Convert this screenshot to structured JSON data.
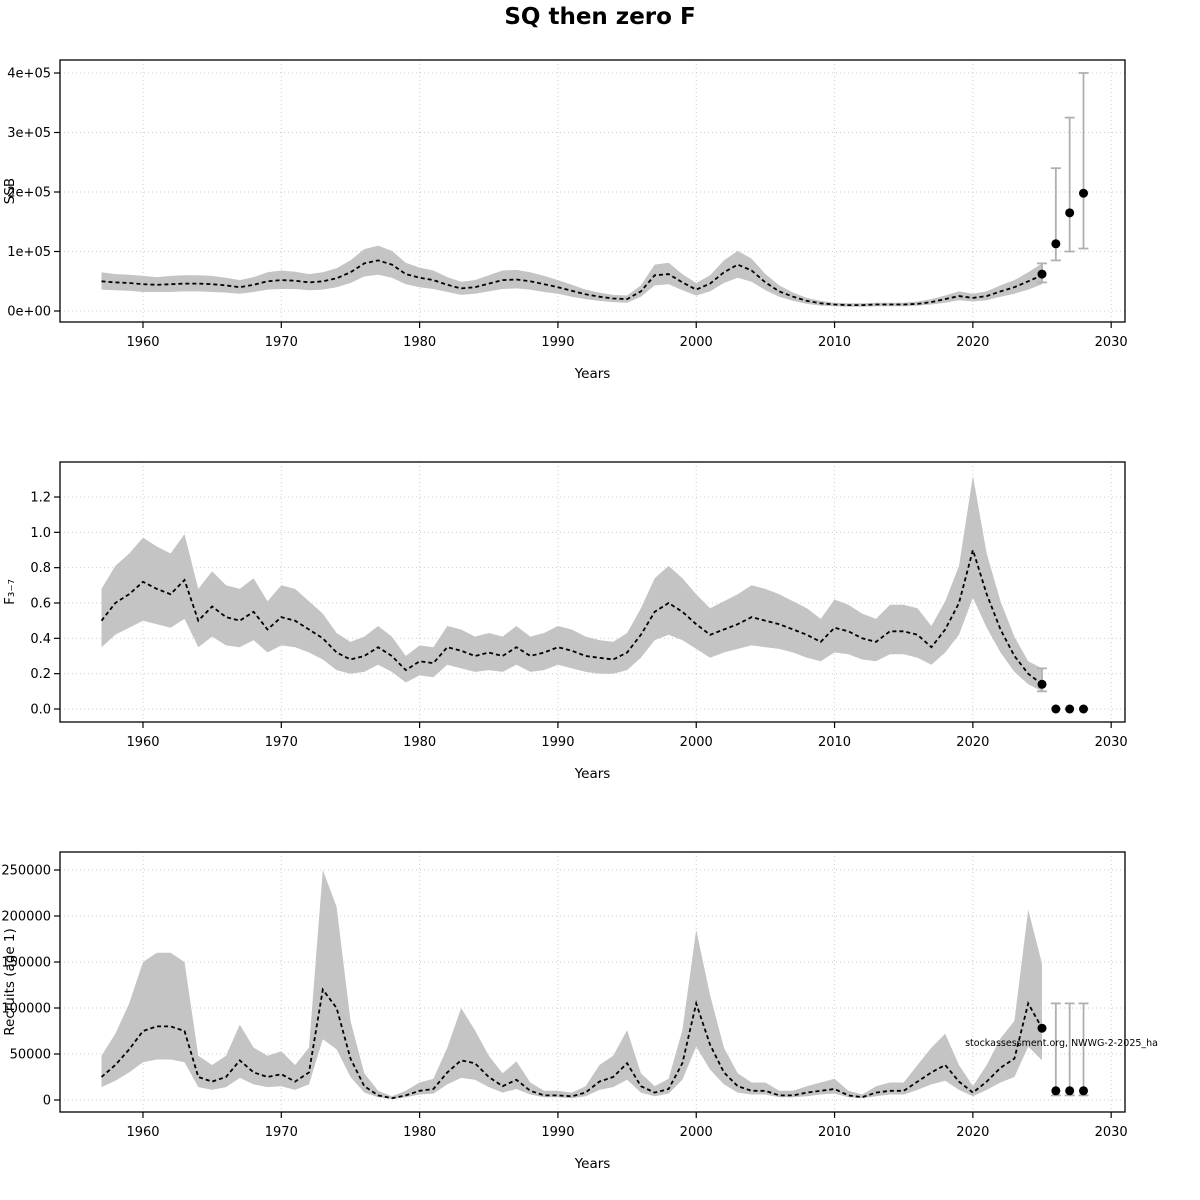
{
  "title": "SQ then zero F",
  "watermark": "stockassessment.org, NWWG-2-2025_ha",
  "chart_data": [
    {
      "type": "line",
      "name": "ssb",
      "xlabel": "Years",
      "ylabel": "SSB",
      "legend": "median with confidence band and forecast points",
      "grid": true,
      "xlim": [
        1954,
        2031
      ],
      "ylim": [
        0,
        400000
      ],
      "xticks": [
        1960,
        1970,
        1980,
        1990,
        2000,
        2010,
        2020,
        2030
      ],
      "yticks": [
        0,
        100000,
        200000,
        300000,
        400000
      ],
      "ytick_labels": [
        "0e+00",
        "1e+05",
        "2e+05",
        "3e+05",
        "4e+05"
      ],
      "years": [
        1957,
        1958,
        1959,
        1960,
        1961,
        1962,
        1963,
        1964,
        1965,
        1966,
        1967,
        1968,
        1969,
        1970,
        1971,
        1972,
        1973,
        1974,
        1975,
        1976,
        1977,
        1978,
        1979,
        1980,
        1981,
        1982,
        1983,
        1984,
        1985,
        1986,
        1987,
        1988,
        1989,
        1990,
        1991,
        1992,
        1993,
        1994,
        1995,
        1996,
        1997,
        1998,
        1999,
        2000,
        2001,
        2002,
        2003,
        2004,
        2005,
        2006,
        2007,
        2008,
        2009,
        2010,
        2011,
        2012,
        2013,
        2014,
        2015,
        2016,
        2017,
        2018,
        2019,
        2020,
        2021,
        2022,
        2023,
        2024,
        2025
      ],
      "median": [
        50000,
        48000,
        47000,
        45000,
        44000,
        45000,
        46000,
        46000,
        45000,
        43000,
        40000,
        44000,
        50000,
        52000,
        51000,
        48000,
        50000,
        55000,
        65000,
        80000,
        85000,
        78000,
        62000,
        56000,
        52000,
        44000,
        38000,
        40000,
        46000,
        52000,
        53000,
        50000,
        45000,
        40000,
        34000,
        28000,
        24000,
        21000,
        20000,
        33000,
        60000,
        62000,
        48000,
        36000,
        46000,
        65000,
        78000,
        68000,
        48000,
        33000,
        24000,
        17000,
        13000,
        11000,
        10000,
        10000,
        11000,
        11000,
        11000,
        12000,
        15000,
        20000,
        25000,
        22000,
        25000,
        33000,
        40000,
        50000,
        60000
      ],
      "upper": [
        65000,
        62000,
        61000,
        59000,
        57000,
        59000,
        60000,
        60000,
        59000,
        56000,
        52000,
        57000,
        65000,
        68000,
        66000,
        62000,
        65000,
        72000,
        85000,
        104000,
        110000,
        101000,
        81000,
        73000,
        68000,
        57000,
        49000,
        52000,
        60000,
        68000,
        69000,
        65000,
        59000,
        52000,
        44000,
        36000,
        31000,
        27000,
        26000,
        43000,
        78000,
        81000,
        62000,
        47000,
        60000,
        85000,
        101000,
        88000,
        62000,
        43000,
        31000,
        22000,
        17000,
        14000,
        13000,
        13000,
        14000,
        14000,
        14000,
        16000,
        20000,
        26000,
        33000,
        29000,
        33000,
        43000,
        52000,
        65000,
        80000
      ],
      "lower": [
        36000,
        35000,
        34000,
        32000,
        32000,
        32000,
        33000,
        33000,
        32000,
        31000,
        29000,
        32000,
        36000,
        37000,
        37000,
        35000,
        36000,
        40000,
        47000,
        58000,
        61000,
        56000,
        45000,
        40000,
        37000,
        32000,
        27000,
        29000,
        33000,
        37000,
        38000,
        36000,
        32000,
        29000,
        24000,
        20000,
        17000,
        15000,
        14000,
        24000,
        43000,
        45000,
        35000,
        26000,
        33000,
        47000,
        56000,
        49000,
        35000,
        24000,
        17000,
        12000,
        9000,
        8000,
        7000,
        7000,
        8000,
        8000,
        8000,
        9000,
        11000,
        14000,
        18000,
        16000,
        18000,
        24000,
        29000,
        36000,
        45000
      ],
      "forecast": {
        "years": [
          2025,
          2026,
          2027,
          2028
        ],
        "points": [
          62000,
          113000,
          165000,
          198000
        ],
        "lower": [
          48000,
          85000,
          100000,
          105000
        ],
        "upper": [
          80000,
          240000,
          325000,
          400000
        ]
      }
    },
    {
      "type": "line",
      "name": "f",
      "xlabel": "Years",
      "ylabel": "F₃₋₇",
      "legend": "median with confidence band and forecast points",
      "grid": true,
      "xlim": [
        1954,
        2031
      ],
      "ylim": [
        0,
        1.2
      ],
      "xticks": [
        1960,
        1970,
        1980,
        1990,
        2000,
        2010,
        2020,
        2030
      ],
      "yticks": [
        0,
        0.2,
        0.4,
        0.6,
        0.8,
        1.0,
        1.2
      ],
      "ytick_labels": [
        "0.0",
        "0.2",
        "0.4",
        "0.6",
        "0.8",
        "1.0",
        "1.2"
      ],
      "years": [
        1957,
        1958,
        1959,
        1960,
        1961,
        1962,
        1963,
        1964,
        1965,
        1966,
        1967,
        1968,
        1969,
        1970,
        1971,
        1972,
        1973,
        1974,
        1975,
        1976,
        1977,
        1978,
        1979,
        1980,
        1981,
        1982,
        1983,
        1984,
        1985,
        1986,
        1987,
        1988,
        1989,
        1990,
        1991,
        1992,
        1993,
        1994,
        1995,
        1996,
        1997,
        1998,
        1999,
        2000,
        2001,
        2002,
        2003,
        2004,
        2005,
        2006,
        2007,
        2008,
        2009,
        2010,
        2011,
        2012,
        2013,
        2014,
        2015,
        2016,
        2017,
        2018,
        2019,
        2020,
        2021,
        2022,
        2023,
        2024,
        2025
      ],
      "median": [
        0.5,
        0.6,
        0.65,
        0.72,
        0.68,
        0.65,
        0.73,
        0.5,
        0.58,
        0.52,
        0.5,
        0.55,
        0.45,
        0.52,
        0.5,
        0.45,
        0.4,
        0.32,
        0.28,
        0.3,
        0.35,
        0.3,
        0.22,
        0.27,
        0.26,
        0.35,
        0.33,
        0.3,
        0.32,
        0.3,
        0.35,
        0.3,
        0.32,
        0.35,
        0.33,
        0.3,
        0.29,
        0.28,
        0.32,
        0.42,
        0.55,
        0.6,
        0.55,
        0.48,
        0.42,
        0.45,
        0.48,
        0.52,
        0.5,
        0.48,
        0.45,
        0.42,
        0.38,
        0.46,
        0.44,
        0.4,
        0.38,
        0.44,
        0.44,
        0.42,
        0.35,
        0.45,
        0.6,
        0.9,
        0.65,
        0.45,
        0.3,
        0.2,
        0.14
      ],
      "upper": [
        0.68,
        0.81,
        0.88,
        0.97,
        0.92,
        0.88,
        0.99,
        0.68,
        0.78,
        0.7,
        0.68,
        0.74,
        0.61,
        0.7,
        0.68,
        0.61,
        0.54,
        0.43,
        0.38,
        0.41,
        0.47,
        0.41,
        0.3,
        0.36,
        0.35,
        0.47,
        0.45,
        0.41,
        0.43,
        0.41,
        0.47,
        0.41,
        0.43,
        0.47,
        0.45,
        0.41,
        0.39,
        0.38,
        0.43,
        0.57,
        0.74,
        0.81,
        0.74,
        0.65,
        0.57,
        0.61,
        0.65,
        0.7,
        0.68,
        0.65,
        0.61,
        0.57,
        0.51,
        0.62,
        0.59,
        0.54,
        0.51,
        0.59,
        0.59,
        0.57,
        0.47,
        0.61,
        0.81,
        1.32,
        0.88,
        0.61,
        0.41,
        0.27,
        0.23
      ],
      "lower": [
        0.35,
        0.42,
        0.46,
        0.5,
        0.48,
        0.46,
        0.51,
        0.35,
        0.41,
        0.36,
        0.35,
        0.39,
        0.32,
        0.36,
        0.35,
        0.32,
        0.28,
        0.22,
        0.2,
        0.21,
        0.25,
        0.21,
        0.15,
        0.19,
        0.18,
        0.25,
        0.23,
        0.21,
        0.22,
        0.21,
        0.25,
        0.21,
        0.22,
        0.25,
        0.23,
        0.21,
        0.2,
        0.2,
        0.22,
        0.29,
        0.39,
        0.42,
        0.39,
        0.34,
        0.29,
        0.32,
        0.34,
        0.36,
        0.35,
        0.34,
        0.32,
        0.29,
        0.27,
        0.32,
        0.31,
        0.28,
        0.27,
        0.31,
        0.31,
        0.29,
        0.25,
        0.32,
        0.42,
        0.63,
        0.46,
        0.32,
        0.21,
        0.14,
        0.1
      ],
      "forecast": {
        "years": [
          2025,
          2026,
          2027,
          2028
        ],
        "points": [
          0.14,
          0,
          0,
          0
        ],
        "lower": [
          0.1,
          0,
          0,
          0
        ],
        "upper": [
          0.23,
          0,
          0,
          0
        ]
      }
    },
    {
      "type": "line",
      "name": "recruits",
      "xlabel": "Years",
      "ylabel": "Recruits (age 1)",
      "legend": "median with confidence band and forecast points",
      "grid": true,
      "xlim": [
        1954,
        2031
      ],
      "ylim": [
        0,
        250000
      ],
      "xticks": [
        1960,
        1970,
        1980,
        1990,
        2000,
        2010,
        2020,
        2030
      ],
      "yticks": [
        0,
        50000,
        100000,
        150000,
        200000,
        250000
      ],
      "ytick_labels": [
        "0",
        "50000",
        "100000",
        "150000",
        "200000",
        "250000"
      ],
      "years": [
        1957,
        1958,
        1959,
        1960,
        1961,
        1962,
        1963,
        1964,
        1965,
        1966,
        1967,
        1968,
        1969,
        1970,
        1971,
        1972,
        1973,
        1974,
        1975,
        1976,
        1977,
        1978,
        1979,
        1980,
        1981,
        1982,
        1983,
        1984,
        1985,
        1986,
        1987,
        1988,
        1989,
        1990,
        1991,
        1992,
        1993,
        1994,
        1995,
        1996,
        1997,
        1998,
        1999,
        2000,
        2001,
        2002,
        2003,
        2004,
        2005,
        2006,
        2007,
        2008,
        2009,
        2010,
        2011,
        2012,
        2013,
        2014,
        2015,
        2016,
        2017,
        2018,
        2019,
        2020,
        2021,
        2022,
        2023,
        2024,
        2025
      ],
      "median": [
        25000,
        38000,
        55000,
        75000,
        80000,
        80000,
        75000,
        25000,
        20000,
        25000,
        43000,
        30000,
        25000,
        28000,
        20000,
        30000,
        120000,
        100000,
        45000,
        15000,
        5000,
        2000,
        5000,
        10000,
        12000,
        30000,
        43000,
        40000,
        25000,
        15000,
        22000,
        10000,
        5000,
        5000,
        4000,
        8000,
        20000,
        25000,
        40000,
        15000,
        8000,
        12000,
        40000,
        105000,
        60000,
        30000,
        15000,
        10000,
        10000,
        5000,
        5000,
        8000,
        10000,
        12000,
        5000,
        3000,
        8000,
        10000,
        10000,
        20000,
        30000,
        38000,
        20000,
        8000,
        20000,
        35000,
        45000,
        105000,
        78000
      ],
      "upper": [
        48000,
        72000,
        105000,
        150000,
        160000,
        160000,
        150000,
        48000,
        38000,
        48000,
        82000,
        57000,
        48000,
        53000,
        38000,
        57000,
        250000,
        210000,
        86000,
        29000,
        10000,
        4000,
        10000,
        19000,
        23000,
        57000,
        100000,
        76000,
        48000,
        29000,
        42000,
        19000,
        10000,
        10000,
        8000,
        15000,
        38000,
        48000,
        76000,
        29000,
        15000,
        23000,
        76000,
        185000,
        114000,
        57000,
        29000,
        19000,
        19000,
        10000,
        10000,
        15000,
        19000,
        23000,
        10000,
        6000,
        15000,
        19000,
        19000,
        38000,
        57000,
        72000,
        38000,
        15000,
        38000,
        67000,
        86000,
        207000,
        148000
      ],
      "lower": [
        14000,
        21000,
        30000,
        41000,
        44000,
        44000,
        41000,
        14000,
        11000,
        14000,
        24000,
        17000,
        14000,
        15000,
        11000,
        17000,
        66000,
        55000,
        25000,
        8000,
        3000,
        1000,
        3000,
        6000,
        7000,
        17000,
        24000,
        22000,
        14000,
        8000,
        12000,
        6000,
        3000,
        3000,
        2000,
        4000,
        11000,
        14000,
        22000,
        8000,
        4000,
        7000,
        22000,
        58000,
        33000,
        17000,
        8000,
        6000,
        6000,
        3000,
        3000,
        4000,
        6000,
        7000,
        3000,
        2000,
        4000,
        6000,
        6000,
        11000,
        17000,
        21000,
        11000,
        4000,
        11000,
        19000,
        25000,
        58000,
        43000
      ],
      "forecast": {
        "years": [
          2025,
          2026,
          2027,
          2028
        ],
        "points": [
          78000,
          10000,
          10000,
          10000
        ],
        "lower": [
          78000,
          5000,
          5000,
          5000
        ],
        "upper": [
          78000,
          105000,
          105000,
          105000
        ]
      }
    }
  ]
}
